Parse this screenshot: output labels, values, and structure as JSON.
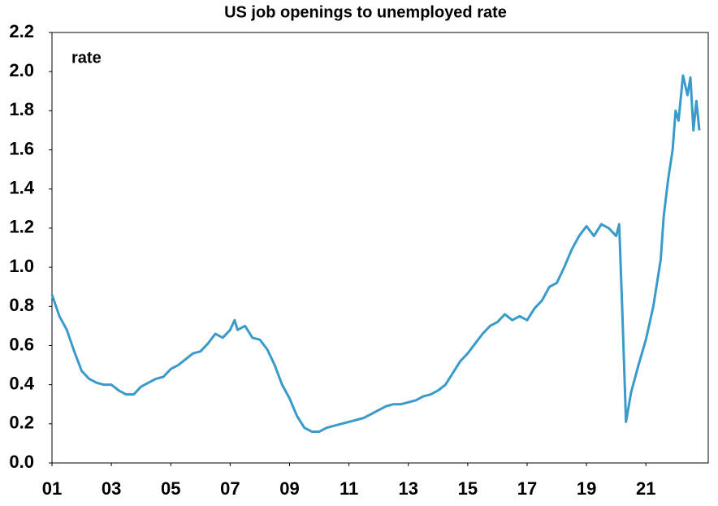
{
  "chart_data": {
    "type": "line",
    "title": "US job openings to unemployed rate",
    "annotation": "rate",
    "x": [
      2001.0,
      2001.25,
      2001.5,
      2001.75,
      2002.0,
      2002.25,
      2002.5,
      2002.75,
      2003.0,
      2003.25,
      2003.5,
      2003.75,
      2004.0,
      2004.25,
      2004.5,
      2004.75,
      2005.0,
      2005.25,
      2005.5,
      2005.75,
      2006.0,
      2006.25,
      2006.5,
      2006.75,
      2007.0,
      2007.15,
      2007.25,
      2007.5,
      2007.75,
      2008.0,
      2008.25,
      2008.5,
      2008.75,
      2009.0,
      2009.25,
      2009.5,
      2009.75,
      2010.0,
      2010.25,
      2010.5,
      2010.75,
      2011.0,
      2011.25,
      2011.5,
      2011.75,
      2012.0,
      2012.25,
      2012.5,
      2012.75,
      2013.0,
      2013.25,
      2013.5,
      2013.75,
      2014.0,
      2014.25,
      2014.5,
      2014.75,
      2015.0,
      2015.25,
      2015.5,
      2015.75,
      2016.0,
      2016.25,
      2016.5,
      2016.75,
      2017.0,
      2017.25,
      2017.5,
      2017.75,
      2018.0,
      2018.25,
      2018.5,
      2018.75,
      2019.0,
      2019.25,
      2019.5,
      2019.75,
      2020.0,
      2020.1,
      2020.2,
      2020.33,
      2020.5,
      2020.75,
      2021.0,
      2021.25,
      2021.5,
      2021.6,
      2021.75,
      2021.9,
      2022.0,
      2022.1,
      2022.25,
      2022.4,
      2022.5,
      2022.6,
      2022.7,
      2022.8
    ],
    "series": [
      {
        "name": "rate",
        "color": "#3a9ac9",
        "values": [
          0.86,
          0.75,
          0.68,
          0.57,
          0.47,
          0.43,
          0.41,
          0.4,
          0.4,
          0.37,
          0.35,
          0.35,
          0.39,
          0.41,
          0.43,
          0.44,
          0.48,
          0.5,
          0.53,
          0.56,
          0.57,
          0.61,
          0.66,
          0.64,
          0.68,
          0.73,
          0.68,
          0.7,
          0.64,
          0.63,
          0.58,
          0.5,
          0.4,
          0.33,
          0.24,
          0.18,
          0.16,
          0.16,
          0.18,
          0.19,
          0.2,
          0.21,
          0.22,
          0.23,
          0.25,
          0.27,
          0.29,
          0.3,
          0.3,
          0.31,
          0.32,
          0.34,
          0.35,
          0.37,
          0.4,
          0.46,
          0.52,
          0.56,
          0.61,
          0.66,
          0.7,
          0.72,
          0.76,
          0.73,
          0.75,
          0.73,
          0.79,
          0.83,
          0.9,
          0.92,
          1.0,
          1.09,
          1.16,
          1.21,
          1.16,
          1.22,
          1.2,
          1.16,
          1.22,
          0.8,
          0.21,
          0.36,
          0.5,
          0.63,
          0.8,
          1.04,
          1.26,
          1.45,
          1.6,
          1.8,
          1.75,
          1.98,
          1.88,
          1.97,
          1.7,
          1.85,
          1.7
        ]
      }
    ],
    "xlim": [
      2001,
      2023.1
    ],
    "xticks": [
      {
        "value": 2001,
        "label": "01"
      },
      {
        "value": 2003,
        "label": "03"
      },
      {
        "value": 2005,
        "label": "05"
      },
      {
        "value": 2007,
        "label": "07"
      },
      {
        "value": 2009,
        "label": "09"
      },
      {
        "value": 2011,
        "label": "11"
      },
      {
        "value": 2013,
        "label": "13"
      },
      {
        "value": 2015,
        "label": "15"
      },
      {
        "value": 2017,
        "label": "17"
      },
      {
        "value": 2019,
        "label": "19"
      },
      {
        "value": 2021,
        "label": "21"
      }
    ],
    "ylim": [
      0,
      2.2
    ],
    "yticks": [
      {
        "value": 0,
        "label": "0.0"
      },
      0.2,
      0.4,
      0.6,
      0.8,
      {
        "value": 1,
        "label": "1.0"
      },
      1.2,
      1.4,
      1.6,
      1.8,
      {
        "value": 2,
        "label": "2.0"
      },
      2.2
    ],
    "grid": false
  }
}
